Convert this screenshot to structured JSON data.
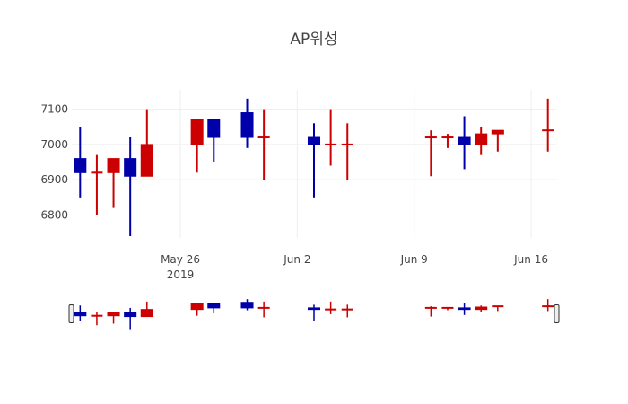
{
  "chart_data": {
    "type": "candlestick",
    "title": "AP위성",
    "colors": {
      "increasing": "#cc0000",
      "decreasing": "#0000aa"
    },
    "ylim": [
      6735,
      7155
    ],
    "yticks": [
      6800,
      6900,
      7000,
      7100
    ],
    "ytick_labels": [
      "6800",
      "6900",
      "7000",
      "7100"
    ],
    "xlim": [
      "2019-05-19T12:00",
      "2019-06-17T12:00"
    ],
    "xticks": [
      {
        "date": "2019-05-26",
        "label": "May 26",
        "sublabel": "2019"
      },
      {
        "date": "2019-06-02",
        "label": "Jun 2",
        "sublabel": ""
      },
      {
        "date": "2019-06-09",
        "label": "Jun 9",
        "sublabel": ""
      },
      {
        "date": "2019-06-16",
        "label": "Jun 16",
        "sublabel": ""
      }
    ],
    "candles": [
      {
        "date": "2019-05-20",
        "open": 6960,
        "high": 7050,
        "low": 6850,
        "close": 6920
      },
      {
        "date": "2019-05-21",
        "open": 6920,
        "high": 6970,
        "low": 6800,
        "close": 6920
      },
      {
        "date": "2019-05-22",
        "open": 6920,
        "high": 6960,
        "low": 6820,
        "close": 6960
      },
      {
        "date": "2019-05-23",
        "open": 6960,
        "high": 7020,
        "low": 6740,
        "close": 6910
      },
      {
        "date": "2019-05-24",
        "open": 6910,
        "high": 7100,
        "low": 6910,
        "close": 7000
      },
      {
        "date": "2019-05-27",
        "open": 7000,
        "high": 7070,
        "low": 6920,
        "close": 7070
      },
      {
        "date": "2019-05-28",
        "open": 7070,
        "high": 7070,
        "low": 6950,
        "close": 7020
      },
      {
        "date": "2019-05-30",
        "open": 7090,
        "high": 7130,
        "low": 6990,
        "close": 7020
      },
      {
        "date": "2019-05-31",
        "open": 7020,
        "high": 7100,
        "low": 6900,
        "close": 7020
      },
      {
        "date": "2019-06-03",
        "open": 7020,
        "high": 7060,
        "low": 6850,
        "close": 7000
      },
      {
        "date": "2019-06-04",
        "open": 7000,
        "high": 7100,
        "low": 6940,
        "close": 7000
      },
      {
        "date": "2019-06-05",
        "open": 7000,
        "high": 7060,
        "low": 6900,
        "close": 7000
      },
      {
        "date": "2019-06-10",
        "open": 7020,
        "high": 7040,
        "low": 6910,
        "close": 7020
      },
      {
        "date": "2019-06-11",
        "open": 7020,
        "high": 7030,
        "low": 6990,
        "close": 7020
      },
      {
        "date": "2019-06-12",
        "open": 7020,
        "high": 7080,
        "low": 6930,
        "close": 7000
      },
      {
        "date": "2019-06-13",
        "open": 7000,
        "high": 7050,
        "low": 6970,
        "close": 7030
      },
      {
        "date": "2019-06-14",
        "open": 7030,
        "high": 7040,
        "low": 6980,
        "close": 7040
      },
      {
        "date": "2019-06-17",
        "open": 7040,
        "high": 7130,
        "low": 6980,
        "close": 7040
      }
    ],
    "rangeslider": true
  }
}
